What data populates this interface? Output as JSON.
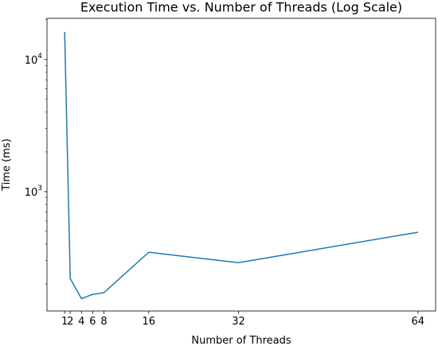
{
  "chart_data": {
    "type": "line",
    "title": "Execution Time vs. Number of Threads (Log Scale)",
    "xlabel": "Number of Threads",
    "ylabel": "Time (ms)",
    "yscale": "log",
    "x_ticks": [
      1,
      2,
      4,
      6,
      8,
      16,
      32,
      64
    ],
    "x_tick_labels": [
      "1",
      "2",
      "4",
      "6",
      "8",
      "16",
      "32",
      "64"
    ],
    "y_ticks": [
      1000,
      10000
    ],
    "y_tick_labels": [
      {
        "base": "10",
        "exp": "3"
      },
      {
        "base": "10",
        "exp": "4"
      }
    ],
    "xlim": [
      -2.15,
      67.15
    ],
    "ylim": [
      125,
      20500
    ],
    "grid": false,
    "series": [
      {
        "color": "#1f77b4",
        "x": [
          1,
          2,
          4,
          6,
          8,
          16,
          32,
          64
        ],
        "y": [
          16200,
          220,
          155,
          167,
          172,
          348,
          290,
          493
        ]
      }
    ]
  }
}
